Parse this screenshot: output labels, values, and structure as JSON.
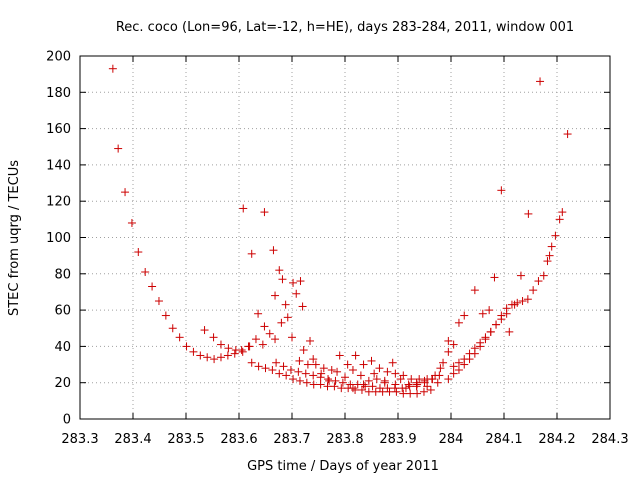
{
  "chart_data": {
    "type": "scatter",
    "title": "Rec. coco (Lon=96, Lat=-12, h=HE), days 283-284, 2011, window 001",
    "xlabel": "GPS time / Days of year 2011",
    "ylabel": "STEC from uqrg / TECUs",
    "xlim": [
      283.3,
      284.3
    ],
    "ylim": [
      0,
      200
    ],
    "xticks": [
      283.3,
      283.4,
      283.5,
      283.6,
      283.7,
      283.8,
      283.9,
      284.0,
      284.1,
      284.2,
      284.3
    ],
    "xtick_labels": [
      "283.3",
      "283.4",
      "283.5",
      "283.6",
      "283.7",
      "283.8",
      "283.9",
      "284",
      "284.1",
      "284.2",
      "284.3"
    ],
    "yticks": [
      0,
      20,
      40,
      60,
      80,
      100,
      120,
      140,
      160,
      180,
      200
    ],
    "ytick_labels": [
      "0",
      "20",
      "40",
      "60",
      "80",
      "100",
      "120",
      "140",
      "160",
      "180",
      "200"
    ],
    "grid": true,
    "marker": "+",
    "color": "#cc0000",
    "points": [
      [
        283.362,
        193
      ],
      [
        283.372,
        149
      ],
      [
        283.385,
        125
      ],
      [
        283.398,
        108
      ],
      [
        283.41,
        92
      ],
      [
        283.423,
        81
      ],
      [
        283.436,
        73
      ],
      [
        283.449,
        65
      ],
      [
        283.462,
        57
      ],
      [
        283.475,
        50
      ],
      [
        283.488,
        45
      ],
      [
        283.501,
        40
      ],
      [
        283.514,
        37
      ],
      [
        283.527,
        35
      ],
      [
        283.54,
        34
      ],
      [
        283.553,
        33
      ],
      [
        283.566,
        34
      ],
      [
        283.579,
        35
      ],
      [
        283.592,
        36
      ],
      [
        283.605,
        38
      ],
      [
        283.618,
        40
      ],
      [
        283.535,
        49
      ],
      [
        283.552,
        45
      ],
      [
        283.566,
        41
      ],
      [
        283.58,
        39
      ],
      [
        283.594,
        38
      ],
      [
        283.607,
        37
      ],
      [
        283.62,
        40
      ],
      [
        283.632,
        44
      ],
      [
        283.645,
        41
      ],
      [
        283.608,
        116
      ],
      [
        283.624,
        91
      ],
      [
        283.636,
        58
      ],
      [
        283.648,
        51
      ],
      [
        283.658,
        47
      ],
      [
        283.668,
        44
      ],
      [
        283.68,
        53
      ],
      [
        283.692,
        56
      ],
      [
        283.648,
        114
      ],
      [
        283.665,
        93
      ],
      [
        283.676,
        82
      ],
      [
        283.682,
        77
      ],
      [
        283.668,
        68
      ],
      [
        283.688,
        63
      ],
      [
        283.702,
        75
      ],
      [
        283.716,
        76
      ],
      [
        283.72,
        62
      ],
      [
        283.722,
        38
      ],
      [
        283.734,
        43
      ],
      [
        283.708,
        69
      ],
      [
        283.624,
        31
      ],
      [
        283.637,
        29
      ],
      [
        283.65,
        28
      ],
      [
        283.663,
        27
      ],
      [
        283.676,
        25
      ],
      [
        283.689,
        24
      ],
      [
        283.702,
        22
      ],
      [
        283.715,
        21
      ],
      [
        283.728,
        20
      ],
      [
        283.741,
        19
      ],
      [
        283.754,
        19
      ],
      [
        283.767,
        18
      ],
      [
        283.78,
        18
      ],
      [
        283.793,
        17
      ],
      [
        283.806,
        17
      ],
      [
        283.819,
        16
      ],
      [
        283.832,
        16
      ],
      [
        283.845,
        15
      ],
      [
        283.858,
        15
      ],
      [
        283.871,
        15
      ],
      [
        283.884,
        15
      ],
      [
        283.897,
        15
      ],
      [
        283.91,
        14
      ],
      [
        283.923,
        14
      ],
      [
        283.936,
        14
      ],
      [
        283.949,
        15
      ],
      [
        283.962,
        16
      ],
      [
        283.67,
        31
      ],
      [
        283.684,
        29
      ],
      [
        283.698,
        27
      ],
      [
        283.712,
        26
      ],
      [
        283.726,
        25
      ],
      [
        283.74,
        24
      ],
      [
        283.754,
        23
      ],
      [
        283.768,
        22
      ],
      [
        283.782,
        21
      ],
      [
        283.796,
        20
      ],
      [
        283.81,
        19
      ],
      [
        283.824,
        19
      ],
      [
        283.838,
        18
      ],
      [
        283.852,
        18
      ],
      [
        283.866,
        17
      ],
      [
        283.88,
        17
      ],
      [
        283.894,
        17
      ],
      [
        283.908,
        17
      ],
      [
        283.922,
        18
      ],
      [
        283.936,
        19
      ],
      [
        283.95,
        20
      ],
      [
        283.964,
        22
      ],
      [
        283.978,
        24
      ],
      [
        283.7,
        45
      ],
      [
        283.714,
        32
      ],
      [
        283.73,
        30
      ],
      [
        283.745,
        30
      ],
      [
        283.76,
        28
      ],
      [
        283.775,
        27
      ],
      [
        283.79,
        35
      ],
      [
        283.805,
        30
      ],
      [
        283.82,
        35
      ],
      [
        283.835,
        30
      ],
      [
        283.85,
        32
      ],
      [
        283.865,
        28
      ],
      [
        283.88,
        26
      ],
      [
        283.895,
        25
      ],
      [
        283.91,
        24
      ],
      [
        283.925,
        22
      ],
      [
        283.94,
        22
      ],
      [
        283.955,
        22
      ],
      [
        283.97,
        24
      ],
      [
        283.985,
        31
      ],
      [
        283.995,
        43
      ],
      [
        283.74,
        33
      ],
      [
        283.755,
        25
      ],
      [
        283.77,
        21
      ],
      [
        283.785,
        26
      ],
      [
        283.8,
        23
      ],
      [
        283.815,
        27
      ],
      [
        283.83,
        24
      ],
      [
        283.845,
        21
      ],
      [
        283.86,
        22
      ],
      [
        283.875,
        20
      ],
      [
        283.89,
        31
      ],
      [
        283.905,
        22
      ],
      [
        283.92,
        19
      ],
      [
        283.935,
        20
      ],
      [
        283.95,
        21
      ],
      [
        283.965,
        22
      ],
      [
        283.98,
        28
      ],
      [
        283.995,
        37
      ],
      [
        283.815,
        17
      ],
      [
        283.835,
        19
      ],
      [
        283.855,
        25
      ],
      [
        283.875,
        21
      ],
      [
        283.895,
        19
      ],
      [
        283.915,
        17
      ],
      [
        283.935,
        18
      ],
      [
        283.955,
        18
      ],
      [
        283.975,
        20
      ],
      [
        283.995,
        22
      ],
      [
        284.005,
        25
      ],
      [
        284.015,
        27
      ],
      [
        284.025,
        30
      ],
      [
        284.035,
        33
      ],
      [
        284.045,
        36
      ],
      [
        284.055,
        40
      ],
      [
        284.065,
        44
      ],
      [
        284.075,
        48
      ],
      [
        284.085,
        52
      ],
      [
        284.095,
        57
      ],
      [
        284.105,
        61
      ],
      [
        284.115,
        63
      ],
      [
        284.125,
        64
      ],
      [
        284.135,
        65
      ],
      [
        284.145,
        66
      ],
      [
        284.155,
        71
      ],
      [
        284.165,
        76
      ],
      [
        284.175,
        79
      ],
      [
        284.182,
        87
      ],
      [
        284.19,
        95
      ],
      [
        284.197,
        101
      ],
      [
        284.205,
        110
      ],
      [
        284.21,
        114
      ],
      [
        284.005,
        29
      ],
      [
        284.015,
        31
      ],
      [
        284.025,
        33
      ],
      [
        284.035,
        36
      ],
      [
        284.045,
        39
      ],
      [
        284.055,
        42
      ],
      [
        284.065,
        45
      ],
      [
        284.075,
        48
      ],
      [
        284.085,
        52
      ],
      [
        284.095,
        55
      ],
      [
        284.105,
        58
      ],
      [
        284.005,
        41
      ],
      [
        284.015,
        53
      ],
      [
        284.025,
        57
      ],
      [
        284.045,
        71
      ],
      [
        284.06,
        58
      ],
      [
        284.072,
        60
      ],
      [
        284.082,
        78
      ],
      [
        284.095,
        126
      ],
      [
        284.11,
        48
      ],
      [
        284.12,
        63
      ],
      [
        284.132,
        79
      ],
      [
        284.146,
        113
      ],
      [
        284.168,
        186
      ],
      [
        284.186,
        90
      ],
      [
        284.22,
        157
      ]
    ]
  }
}
